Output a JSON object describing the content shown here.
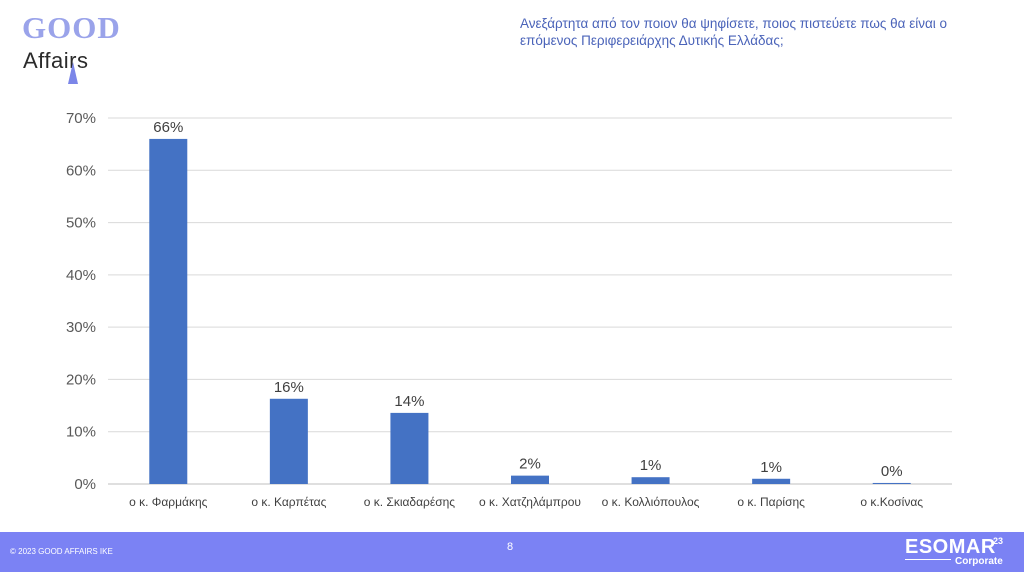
{
  "logo": {
    "line1": "GOOD",
    "line2": "Affairs",
    "primary_color": "#9aa3ea",
    "pin_color": "#7b86e8"
  },
  "question": "Ανεξάρτητα από τον ποιον θα ψηφίσετε, ποιος πιστεύετε πως θα είναι ο επόμενος Περιφερειάρχης Δυτικής Ελλάδας;",
  "colors": {
    "question_text": "#4a63b9",
    "bar": "#4472c4",
    "footer_bg": "#7b82f4",
    "grid": "#d9d9d9",
    "axis_text": "#595959",
    "data_label": "#404040",
    "tick_text": "#404040"
  },
  "chart_data": {
    "type": "bar",
    "title": "",
    "xlabel": "",
    "ylabel": "",
    "categories": [
      "ο κ. Φαρμάκης",
      "ο κ. Καρπέτας",
      "ο κ. Σκιαδαρέσης",
      "ο κ. Χατζηλάμπρου",
      "ο κ. Κολλιόπουλος",
      "ο κ. Παρίσης",
      "ο κ.Κοσίνας"
    ],
    "values": [
      66,
      16,
      14,
      2,
      1,
      1,
      0
    ],
    "value_labels": [
      "66%",
      "16%",
      "14%",
      "2%",
      "1%",
      "1%",
      "0%"
    ],
    "bar_values_exact": [
      66,
      16.3,
      13.6,
      1.6,
      1.3,
      1.0,
      0.2
    ],
    "ylim": [
      0,
      70
    ],
    "yticks": [
      0,
      10,
      20,
      30,
      40,
      50,
      60,
      70
    ],
    "ytick_labels": [
      "0%",
      "10%",
      "20%",
      "30%",
      "40%",
      "50%",
      "60%",
      "70%"
    ],
    "grid": true,
    "legend": "none"
  },
  "footer": {
    "copyright": "© 2023 GOOD AFFAIRS IKE",
    "page_number": "8",
    "esomar_word": "ESOMAR",
    "esomar_number": "23",
    "esomar_sub": "Corporate"
  }
}
